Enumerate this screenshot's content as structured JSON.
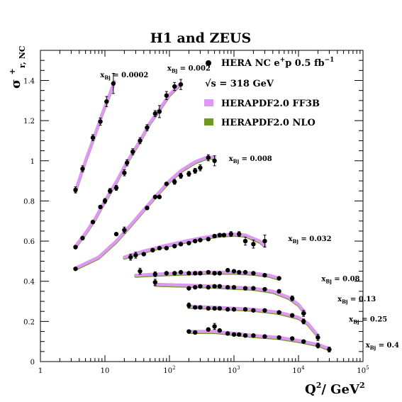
{
  "chart_data": {
    "type": "scatter",
    "title": "H1 and ZEUS",
    "ylabel": "σ",
    "ylabel_sup": "+",
    "ylabel_sub": "r, NC",
    "xlabel": "Q",
    "xlabel_sup1": "2",
    "xlabel_mid": "/ GeV",
    "xlabel_sup2": "2",
    "xscale": "log",
    "xlim": [
      1,
      100000
    ],
    "ylim": [
      0,
      1.55
    ],
    "grid": false,
    "legend_position": "top-right",
    "legend": {
      "data": {
        "text": "HERA NC e",
        "sup": "+",
        "tail": "p 0.5 fb",
        "sup2": "−1"
      },
      "energy": {
        "text": "√s = 318 GeV"
      },
      "ff3b": {
        "text": "HERAPDF2.0 FF3B",
        "color": "#dd99f2"
      },
      "nlo": {
        "text": "HERAPDF2.0 NLO",
        "color": "#6d9a1f"
      }
    },
    "x_ticks": [
      {
        "v": 1,
        "label": "1"
      },
      {
        "v": 10,
        "label": "10"
      },
      {
        "v": 100,
        "label": "10",
        "sup": "2"
      },
      {
        "v": 1000,
        "label": "10",
        "sup": "3"
      },
      {
        "v": 10000,
        "label": "10",
        "sup": "4"
      },
      {
        "v": 100000,
        "label": "10",
        "sup": "5"
      }
    ],
    "y_ticks": [
      {
        "v": 0,
        "label": "0"
      },
      {
        "v": 0.2,
        "label": "0.2"
      },
      {
        "v": 0.4,
        "label": "0.4"
      },
      {
        "v": 0.6,
        "label": "0.6"
      },
      {
        "v": 0.8,
        "label": "0.8"
      },
      {
        "v": 1.0,
        "label": "1"
      },
      {
        "v": 1.2,
        "label": "1.2"
      },
      {
        "v": 1.4,
        "label": "1.4"
      }
    ],
    "series": [
      {
        "name": "0.0002",
        "lx": 20,
        "ly": 1.415,
        "points": [
          [
            3.5,
            0.855,
            0.015
          ],
          [
            4.5,
            0.96,
            0.015
          ],
          [
            6.5,
            1.115,
            0.015
          ],
          [
            8.5,
            1.195,
            0.018
          ],
          [
            10.6,
            1.295,
            0.025
          ],
          [
            13.5,
            1.385,
            0.05
          ]
        ],
        "curve": [
          [
            3.5,
            0.85
          ],
          [
            5,
            1.0
          ],
          [
            7,
            1.13
          ],
          [
            9,
            1.23
          ],
          [
            11.5,
            1.32
          ],
          [
            14,
            1.395
          ]
        ]
      },
      {
        "name": "0.002",
        "lx": 200,
        "ly": 1.45,
        "points": [
          [
            3.5,
            0.57,
            0.008
          ],
          [
            4.5,
            0.615,
            0.008
          ],
          [
            6.5,
            0.695,
            0.008
          ],
          [
            8.5,
            0.77,
            0.01
          ],
          [
            10,
            0.8,
            0.012
          ],
          [
            12,
            0.85,
            0.012
          ],
          [
            15,
            0.865,
            0.012
          ],
          [
            20,
            0.94,
            0.015
          ],
          [
            22,
            0.99,
            0.015
          ],
          [
            27,
            1.045,
            0.015
          ],
          [
            35,
            1.1,
            0.015
          ],
          [
            45,
            1.165,
            0.015
          ],
          [
            60,
            1.235,
            0.015
          ],
          [
            70,
            1.245,
            0.03
          ],
          [
            90,
            1.325,
            0.02
          ],
          [
            120,
            1.37,
            0.02
          ],
          [
            150,
            1.38,
            0.025
          ]
        ],
        "curve": [
          [
            3.5,
            0.575
          ],
          [
            5,
            0.64
          ],
          [
            7,
            0.71
          ],
          [
            10,
            0.8
          ],
          [
            15,
            0.895
          ],
          [
            22,
            0.995
          ],
          [
            35,
            1.1
          ],
          [
            50,
            1.19
          ],
          [
            75,
            1.27
          ],
          [
            100,
            1.33
          ],
          [
            150,
            1.385
          ]
        ]
      },
      {
        "name": "0.008",
        "lx": 1800,
        "ly": 1.0,
        "points": [
          [
            3.5,
            0.462,
            0.005
          ],
          [
            45,
            0.765,
            0.01
          ],
          [
            60,
            0.82,
            0.01
          ],
          [
            70,
            0.82,
            0.01
          ],
          [
            90,
            0.885,
            0.01
          ],
          [
            120,
            0.895,
            0.012
          ],
          [
            150,
            0.925,
            0.012
          ],
          [
            200,
            0.935,
            0.012
          ],
          [
            250,
            0.95,
            0.012
          ],
          [
            300,
            0.965,
            0.015
          ],
          [
            400,
            1.015,
            0.015
          ],
          [
            500,
            1.0,
            0.025
          ]
        ],
        "curve": [
          [
            3.5,
            0.465
          ],
          [
            8,
            0.52
          ],
          [
            15,
            0.6
          ],
          [
            25,
            0.68
          ],
          [
            45,
            0.775
          ],
          [
            70,
            0.845
          ],
          [
            100,
            0.9
          ],
          [
            150,
            0.95
          ],
          [
            250,
            0.995
          ],
          [
            400,
            1.02
          ],
          [
            500,
            1.015
          ]
        ]
      },
      {
        "name": "0.032",
        "lx": 15000,
        "ly": 0.6,
        "points": [
          [
            15,
            0.635,
            0.01
          ],
          [
            20,
            0.655,
            0.015
          ],
          [
            25,
            0.52,
            0.015
          ],
          [
            30,
            0.53,
            0.015
          ],
          [
            40,
            0.535,
            0.01
          ],
          [
            55,
            0.555,
            0.01
          ],
          [
            70,
            0.565,
            0.01
          ],
          [
            90,
            0.565,
            0.01
          ],
          [
            120,
            0.575,
            0.01
          ],
          [
            150,
            0.585,
            0.01
          ],
          [
            200,
            0.59,
            0.01
          ],
          [
            250,
            0.6,
            0.01
          ],
          [
            300,
            0.605,
            0.01
          ],
          [
            400,
            0.61,
            0.01
          ],
          [
            500,
            0.625,
            0.01
          ],
          [
            600,
            0.63,
            0.01
          ],
          [
            700,
            0.63,
            0.01
          ],
          [
            900,
            0.635,
            0.012
          ],
          [
            1200,
            0.635,
            0.012
          ],
          [
            1500,
            0.6,
            0.02
          ],
          [
            2000,
            0.585,
            0.02
          ],
          [
            3000,
            0.6,
            0.03
          ]
        ],
        "curve": [
          [
            20,
            0.52
          ],
          [
            40,
            0.55
          ],
          [
            80,
            0.575
          ],
          [
            150,
            0.595
          ],
          [
            300,
            0.615
          ],
          [
            600,
            0.63
          ],
          [
            1000,
            0.635
          ],
          [
            1500,
            0.63
          ],
          [
            2500,
            0.6
          ],
          [
            3000,
            0.58
          ]
        ]
      },
      {
        "name": "0.08",
        "lx": 45000,
        "ly": 0.4,
        "points": [
          [
            35,
            0.45,
            0.015
          ],
          [
            60,
            0.435,
            0.012
          ],
          [
            90,
            0.44,
            0.01
          ],
          [
            120,
            0.44,
            0.01
          ],
          [
            150,
            0.445,
            0.01
          ],
          [
            200,
            0.44,
            0.01
          ],
          [
            250,
            0.44,
            0.01
          ],
          [
            300,
            0.44,
            0.01
          ],
          [
            400,
            0.445,
            0.01
          ],
          [
            500,
            0.44,
            0.01
          ],
          [
            600,
            0.44,
            0.01
          ],
          [
            800,
            0.455,
            0.01
          ],
          [
            1000,
            0.45,
            0.01
          ],
          [
            1200,
            0.445,
            0.01
          ],
          [
            1500,
            0.445,
            0.01
          ],
          [
            2000,
            0.44,
            0.01
          ],
          [
            3000,
            0.43,
            0.01
          ],
          [
            5000,
            0.415,
            0.01
          ]
        ],
        "curve": [
          [
            30,
            0.43
          ],
          [
            60,
            0.435
          ],
          [
            150,
            0.44
          ],
          [
            400,
            0.445
          ],
          [
            1000,
            0.445
          ],
          [
            2000,
            0.44
          ],
          [
            3500,
            0.43
          ],
          [
            5000,
            0.415
          ]
        ]
      },
      {
        "name": "0.13",
        "lx": 80000,
        "ly": 0.3,
        "points": [
          [
            60,
            0.395,
            0.015
          ],
          [
            200,
            0.365,
            0.01
          ],
          [
            250,
            0.37,
            0.01
          ],
          [
            300,
            0.375,
            0.01
          ],
          [
            400,
            0.37,
            0.01
          ],
          [
            500,
            0.375,
            0.01
          ],
          [
            600,
            0.375,
            0.01
          ],
          [
            800,
            0.37,
            0.01
          ],
          [
            1000,
            0.37,
            0.01
          ],
          [
            1500,
            0.365,
            0.01
          ],
          [
            2000,
            0.365,
            0.01
          ],
          [
            3000,
            0.36,
            0.01
          ],
          [
            5000,
            0.35,
            0.01
          ],
          [
            8000,
            0.315,
            0.012
          ],
          [
            12000,
            0.24,
            0.015
          ]
        ],
        "curve": [
          [
            60,
            0.385
          ],
          [
            200,
            0.38
          ],
          [
            500,
            0.375
          ],
          [
            1000,
            0.37
          ],
          [
            2000,
            0.365
          ],
          [
            4000,
            0.35
          ],
          [
            7000,
            0.32
          ],
          [
            10000,
            0.285
          ],
          [
            12500,
            0.245
          ]
        ]
      },
      {
        "name": "0.25",
        "lx": 120000,
        "ly": 0.2,
        "points": [
          [
            200,
            0.28,
            0.012
          ],
          [
            250,
            0.27,
            0.01
          ],
          [
            300,
            0.27,
            0.01
          ],
          [
            400,
            0.265,
            0.01
          ],
          [
            500,
            0.265,
            0.01
          ],
          [
            600,
            0.265,
            0.01
          ],
          [
            800,
            0.26,
            0.01
          ],
          [
            1000,
            0.26,
            0.01
          ],
          [
            1500,
            0.26,
            0.01
          ],
          [
            2000,
            0.255,
            0.01
          ],
          [
            3000,
            0.255,
            0.01
          ],
          [
            5000,
            0.245,
            0.01
          ],
          [
            8000,
            0.23,
            0.01
          ],
          [
            12000,
            0.2,
            0.012
          ],
          [
            20000,
            0.12,
            0.015
          ]
        ],
        "curve": [
          [
            200,
            0.275
          ],
          [
            500,
            0.27
          ],
          [
            1000,
            0.265
          ],
          [
            2000,
            0.26
          ],
          [
            5000,
            0.245
          ],
          [
            10000,
            0.22
          ],
          [
            14000,
            0.19
          ],
          [
            20000,
            0.13
          ]
        ]
      },
      {
        "name": "0.4",
        "lx": 200000,
        "ly": 0.07,
        "points": [
          [
            200,
            0.15,
            0.01
          ],
          [
            250,
            0.145,
            0.01
          ],
          [
            400,
            0.16,
            0.01
          ],
          [
            500,
            0.175,
            0.015
          ],
          [
            600,
            0.155,
            0.01
          ],
          [
            800,
            0.14,
            0.01
          ],
          [
            1000,
            0.135,
            0.01
          ],
          [
            1200,
            0.135,
            0.01
          ],
          [
            1500,
            0.13,
            0.01
          ],
          [
            2000,
            0.13,
            0.01
          ],
          [
            3000,
            0.125,
            0.01
          ],
          [
            5000,
            0.12,
            0.01
          ],
          [
            8000,
            0.115,
            0.01
          ],
          [
            12000,
            0.1,
            0.01
          ],
          [
            20000,
            0.08,
            0.012
          ],
          [
            30000,
            0.06,
            0.012
          ]
        ],
        "curve": [
          [
            200,
            0.15
          ],
          [
            500,
            0.15
          ],
          [
            1000,
            0.14
          ],
          [
            2000,
            0.13
          ],
          [
            5000,
            0.12
          ],
          [
            10000,
            0.105
          ],
          [
            20000,
            0.085
          ],
          [
            30000,
            0.065
          ]
        ]
      }
    ],
    "bin_label_prefix": "x",
    "bin_label_sub": "Bj",
    "bin_label_eq": " = "
  }
}
